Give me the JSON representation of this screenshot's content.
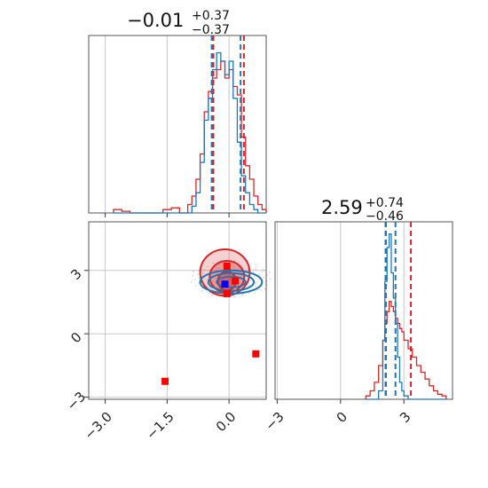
{
  "chart_data": {
    "type": "corner",
    "grid": true,
    "colors": {
      "red": "#d62728",
      "blue": "#1f77b4",
      "marker_red": "#ff0000",
      "marker_blue": "#0000ff"
    },
    "params": [
      {
        "title_value": "−0.01",
        "title_plus": "+0.37",
        "title_minus": "−0.37",
        "range": [
          -3.4,
          0.9
        ]
      },
      {
        "title_value": "2.59",
        "title_plus": "+0.74",
        "title_minus": "−0.46",
        "range": [
          -3.1,
          5.3
        ]
      }
    ],
    "tick_labels": {
      "x0": [
        {
          "v": -3.0,
          "label": "−3.0"
        },
        {
          "v": -1.5,
          "label": "−1.5"
        },
        {
          "v": 0.0,
          "label": "0.0"
        }
      ],
      "y1": [
        {
          "v": -3,
          "label": "−3"
        },
        {
          "v": 0,
          "label": "0"
        },
        {
          "v": 3,
          "label": "3"
        }
      ],
      "x1": [
        {
          "v": -3,
          "label": "−3"
        },
        {
          "v": 0,
          "label": "0"
        },
        {
          "v": 3,
          "label": "3"
        }
      ]
    },
    "hist_param0": {
      "bin_edges": [
        -2.8,
        -2.6,
        -2.4,
        -2.2,
        -2.0,
        -1.8,
        -1.6,
        -1.4,
        -1.2,
        -1.0,
        -0.9,
        -0.8,
        -0.7,
        -0.6,
        -0.5,
        -0.4,
        -0.3,
        -0.2,
        -0.1,
        0.0,
        0.1,
        0.2,
        0.3,
        0.4,
        0.5,
        0.6,
        0.7,
        0.8,
        0.9
      ],
      "red": [
        0.02,
        0.01,
        0.0,
        0.0,
        0.0,
        0.0,
        0.02,
        0.03,
        0.0,
        0.05,
        0.1,
        0.2,
        0.35,
        0.6,
        0.72,
        0.8,
        0.85,
        0.9,
        0.8,
        0.85,
        0.75,
        0.7,
        0.45,
        0.28,
        0.2,
        0.1,
        0.05,
        0.02
      ],
      "blue": [
        0.0,
        0.0,
        0.0,
        0.0,
        0.0,
        0.0,
        0.0,
        0.0,
        0.0,
        0.0,
        0.04,
        0.12,
        0.3,
        0.55,
        0.68,
        0.85,
        0.95,
        0.9,
        0.82,
        0.9,
        0.68,
        0.42,
        0.22,
        0.12,
        0.05,
        0.02,
        0.0,
        0.0
      ],
      "quantiles_red": [
        -0.38,
        0.36
      ],
      "quantiles_blue": [
        -0.42,
        0.28
      ]
    },
    "hist_param1": {
      "bin_edges": [
        1.2,
        1.4,
        1.6,
        1.8,
        2.0,
        2.1,
        2.2,
        2.3,
        2.4,
        2.5,
        2.6,
        2.7,
        2.8,
        2.9,
        3.0,
        3.2,
        3.4,
        3.6,
        3.8,
        4.0,
        4.2,
        4.4,
        4.6,
        4.8,
        5.0
      ],
      "red": [
        0.02,
        0.05,
        0.1,
        0.2,
        0.35,
        0.45,
        0.52,
        0.58,
        0.55,
        0.52,
        0.48,
        0.45,
        0.42,
        0.4,
        0.35,
        0.3,
        0.25,
        0.2,
        0.16,
        0.12,
        0.08,
        0.05,
        0.03,
        0.02
      ],
      "blue": [
        0.0,
        0.0,
        0.0,
        0.05,
        0.35,
        0.7,
        0.9,
        0.98,
        0.75,
        0.6,
        0.45,
        0.25,
        0.1,
        0.05,
        0.02,
        0.0,
        0.0,
        0.0,
        0.0,
        0.0,
        0.0,
        0.0,
        0.0,
        0.0
      ],
      "quantiles_red": [
        2.13,
        3.33
      ],
      "quantiles_blue": [
        2.15,
        2.6
      ]
    },
    "scatter_2d": {
      "red_contours": [
        {
          "center": [
            -0.1,
            2.9
          ],
          "rx": 0.6,
          "ry": 1.1,
          "opacity": 0.35
        },
        {
          "center": [
            -0.05,
            2.7
          ],
          "rx": 0.42,
          "ry": 0.75,
          "opacity": 0.55
        },
        {
          "center": [
            -0.05,
            2.5
          ],
          "rx": 0.22,
          "ry": 0.45,
          "opacity": 0.8
        }
      ],
      "blue_contours": [
        {
          "center": [
            0.05,
            2.45
          ],
          "rx": 0.75,
          "ry": 0.55
        },
        {
          "center": [
            0.05,
            2.45
          ],
          "rx": 0.55,
          "ry": 0.42
        },
        {
          "center": [
            0.05,
            2.45
          ],
          "rx": 0.35,
          "ry": 0.25
        }
      ],
      "red_markers": [
        [
          -1.55,
          -2.25
        ],
        [
          0.65,
          -0.95
        ],
        [
          -0.05,
          1.9
        ],
        [
          -0.05,
          3.2
        ],
        [
          0.15,
          2.5
        ]
      ],
      "blue_markers": [
        [
          -0.1,
          2.35
        ]
      ]
    }
  }
}
